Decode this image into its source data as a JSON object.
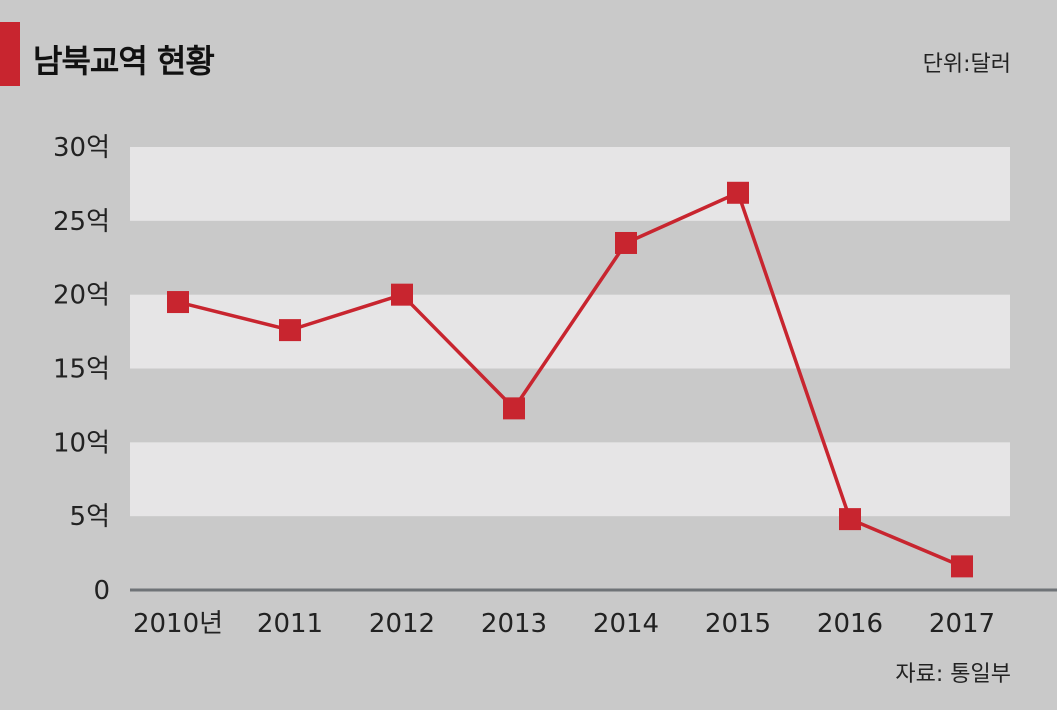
{
  "chart_data": {
    "type": "line",
    "title": "남북교역 현황",
    "unit_note": "단위:달러",
    "source_note": "자료: 통일부",
    "categories": [
      "2010년",
      "2011",
      "2012",
      "2013",
      "2014",
      "2015",
      "2016",
      "2017"
    ],
    "values_eok": [
      19.5,
      17.6,
      20.0,
      12.3,
      23.5,
      26.9,
      4.8,
      1.6
    ],
    "y_ticks": [
      {
        "value": 0,
        "label": "0"
      },
      {
        "value": 5,
        "label": "5억"
      },
      {
        "value": 10,
        "label": "10억"
      },
      {
        "value": 15,
        "label": "15억"
      },
      {
        "value": 20,
        "label": "20억"
      },
      {
        "value": 25,
        "label": "25억"
      },
      {
        "value": 30,
        "label": "30억"
      }
    ],
    "ylim": [
      0,
      30
    ],
    "grid": true,
    "colors": {
      "background": "#c9c9c9",
      "band_light": "#e6e5e6",
      "series": "#c8252f",
      "accent": "#c8252f",
      "axis": "#6f7377"
    }
  }
}
